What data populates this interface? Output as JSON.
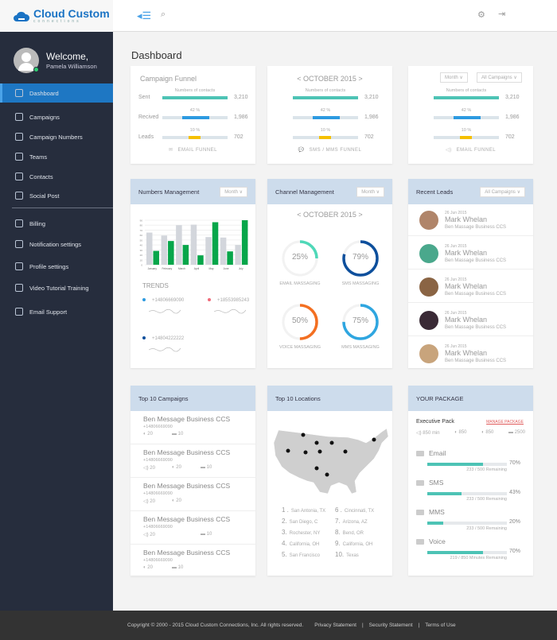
{
  "brand": {
    "name": "Cloud Custom",
    "tagline": "connections"
  },
  "user": {
    "welcome": "Welcome,",
    "name": "Pamela Williamson"
  },
  "nav": [
    {
      "label": "Dashboard",
      "active": true
    },
    {
      "label": "Campaigns"
    },
    {
      "label": "Campaign Numbers"
    },
    {
      "label": "Teams"
    },
    {
      "label": "Contacts"
    },
    {
      "label": "Social Post"
    },
    {
      "label": "Billing"
    },
    {
      "label": "Notification settings"
    },
    {
      "label": "Profile settings"
    },
    {
      "label": "Video Tutorial Training"
    },
    {
      "label": "Email Support"
    }
  ],
  "page_title": "Dashboard",
  "funnels": [
    {
      "title": "Campaign Funnel",
      "footer": "EMAIL FUNNEL",
      "icon": "envelope-icon"
    },
    {
      "title": "< OCTOBER 2015 >",
      "footer": "SMS / MMS  FUNNEL",
      "icon": "chat-icon"
    },
    {
      "title": "",
      "footer": "EMAIL FUNNEL",
      "icon": "speaker-icon",
      "filters": [
        "Month ∨",
        "All Campaigns ∨"
      ]
    }
  ],
  "funnel_rows": [
    {
      "label": "Sent",
      "caption": "Numbers of contacts",
      "value": "3,210",
      "start": 0,
      "pct": 100,
      "color": "#4dc3b5"
    },
    {
      "label": "Recived",
      "caption": "42 %",
      "value": "1,986",
      "start": 30,
      "pct": 42,
      "color": "#2d9ae0"
    },
    {
      "label": "Leads",
      "caption": "10 %",
      "value": "702",
      "start": 40,
      "pct": 18,
      "color": "#f5c000"
    }
  ],
  "numbers_mgmt": {
    "title": "Numbers Management",
    "filter": "Month ∨",
    "trends_title": "TRENDS",
    "trends": [
      {
        "number": "+14806669090",
        "color": "#2d9ae0"
      },
      {
        "number": "+18553985243",
        "color": "#f06b7a"
      },
      {
        "number": "+14804222222",
        "color": "#0d4f9c"
      }
    ]
  },
  "chart_data": {
    "type": "bar",
    "categories": [
      "January",
      "February",
      "March",
      "April",
      "May",
      "June",
      "July"
    ],
    "series": [
      {
        "name": "Series 1",
        "color": "#d3d6dc",
        "values": [
          65,
          59,
          80,
          81,
          56,
          55,
          40
        ]
      },
      {
        "name": "Series 2",
        "color": "#07a64a",
        "values": [
          28,
          48,
          40,
          19,
          86,
          27,
          90
        ]
      }
    ],
    "ylim": [
      0,
      90
    ],
    "yticks": [
      "0",
      "10",
      "20",
      "30",
      "40",
      "50",
      "60",
      "70",
      "80",
      "90"
    ]
  },
  "channel": {
    "title": "Channel Management",
    "filter": "Month ∨",
    "period": "< OCTOBER 2015 >",
    "items": [
      {
        "label": "EMAIL MASSAGING",
        "value": "25%",
        "pct": 25,
        "color": "#4fd8b8"
      },
      {
        "label": "SMS MASSAGING",
        "value": "79%",
        "pct": 79,
        "color": "#0d4f9c"
      },
      {
        "label": "VOICE MASSAGING",
        "value": "50%",
        "pct": 50,
        "color": "#f36f21"
      },
      {
        "label": "MMS MASSAGING",
        "value": "75%",
        "pct": 75,
        "color": "#2fa6e0"
      }
    ]
  },
  "leads": {
    "title": "Recent Leads",
    "filter": "All Campaigns ∨",
    "items": [
      {
        "date": "26 Jun 2015",
        "name": "Mark Whelan",
        "campaign": "Ben Massage Business CCS",
        "color": "#b0856a"
      },
      {
        "date": "26 Jun 2015",
        "name": "Mark Whelan",
        "campaign": "Ben Massage Business CCS",
        "color": "#4aa88c"
      },
      {
        "date": "26 Jun 2015",
        "name": "Mark Whelan",
        "campaign": "Ben Massage Business CCS",
        "color": "#8a6444"
      },
      {
        "date": "26 Jun 2015",
        "name": "Mark Whelan",
        "campaign": "Ben Massage Business CCS",
        "color": "#3a2a36"
      },
      {
        "date": "26 Jun 2015",
        "name": "Mark Whelan",
        "campaign": "Ben Massage Business CCS",
        "color": "#c8a47c"
      }
    ]
  },
  "campaigns": {
    "title": "Top 10 Campaigns",
    "items": [
      {
        "name": "Ben Message Business CCS",
        "phone": "+14806669090",
        "metrics": [
          "◐ 20",
          "▬ 10"
        ]
      },
      {
        "name": "Ben Message Business CCS",
        "phone": "+14806669090",
        "metrics": [
          "◁) 20",
          "◐ 20",
          "▬ 10"
        ]
      },
      {
        "name": "Ben Message Business CCS",
        "phone": "+14806669090",
        "metrics": [
          "◁) 20",
          "◐ 20"
        ]
      },
      {
        "name": "Ben Message Business CCS",
        "phone": "+14806669090",
        "metrics": [
          "◁) 20",
          "",
          "▬ 10"
        ]
      },
      {
        "name": "Ben Message Business CCS",
        "phone": "+14806669090",
        "metrics": [
          "◐ 20",
          "▬ 10"
        ]
      }
    ]
  },
  "locations": {
    "title": "Top 10 Locations",
    "items": [
      {
        "n": "1 .",
        "city": "San Antonia, TX"
      },
      {
        "n": "2.",
        "city": "San Diego, C"
      },
      {
        "n": "3.",
        "city": "Rochester, NY"
      },
      {
        "n": "4.",
        "city": "California, OH"
      },
      {
        "n": "5.",
        "city": "San Francisco"
      },
      {
        "n": "6 .",
        "city": "Cincinnati, TX"
      },
      {
        "n": "7.",
        "city": "Arizona, AZ"
      },
      {
        "n": "8.",
        "city": "Bend, OR"
      },
      {
        "n": "9.",
        "city": "California, OH"
      },
      {
        "n": "10.",
        "city": "Texas"
      }
    ]
  },
  "package": {
    "title": "YOUR PACKAGE",
    "name": "Executive Pack",
    "manage": "MANAGE PACKAGE",
    "quota": [
      "◁) 850 min",
      "◐ 850",
      "◐ 850",
      "▬ 2500"
    ],
    "items": [
      {
        "label": "Email",
        "pct": 70,
        "pct_label": "70%",
        "remaining": "233 / 500 Remaining"
      },
      {
        "label": "SMS",
        "pct": 43,
        "pct_label": "43%",
        "remaining": "233 / 500 Remaining"
      },
      {
        "label": "MMS",
        "pct": 20,
        "pct_label": "20%",
        "remaining": "233 / 500 Remaining"
      },
      {
        "label": "Voice",
        "pct": 70,
        "pct_label": "70%",
        "remaining": "219 / 850 Minutes Remaining"
      }
    ]
  },
  "footer": {
    "copyright": "Copyright  ©  2000 - 2015 Cloud Custom Connections, Inc.  All rights reserved.",
    "links": [
      "Privacy Statement",
      "Security Statement",
      "Terms of Use"
    ],
    "sep": "|"
  }
}
